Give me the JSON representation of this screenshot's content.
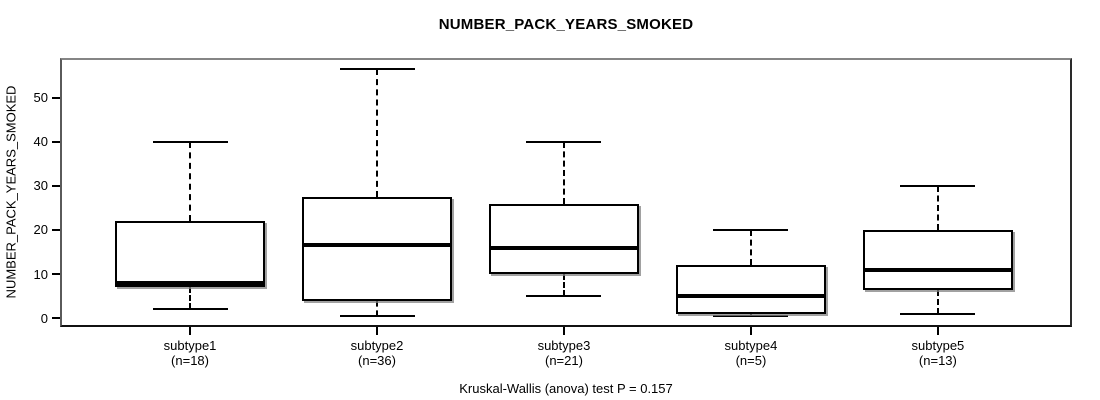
{
  "title": "NUMBER_PACK_YEARS_SMOKED",
  "caption": "Kruskal-Wallis (anova) test P = 0.157",
  "colors": {
    "background": "#ffffff",
    "line": "#000000",
    "box_fill": "#ffffff",
    "frame_shadow": "#808080"
  },
  "chart_data": {
    "type": "boxplot",
    "title": "NUMBER_PACK_YEARS_SMOKED",
    "ylabel": "NUMBER_PACK_YEARS_SMOKED",
    "xlabel": "",
    "ylim": [
      -2,
      59
    ],
    "yticks": [
      0,
      10,
      20,
      30,
      40,
      50
    ],
    "grid": false,
    "legend": false,
    "annotation": "Kruskal-Wallis (anova) test P = 0.157",
    "categories": [
      "subtype1",
      "subtype2",
      "subtype3",
      "subtype4",
      "subtype5"
    ],
    "series": [
      {
        "name": "subtype1",
        "label": "subtype1",
        "n_label": "(n=18)",
        "n": 18,
        "min": 2,
        "q1": 7,
        "median": 8,
        "q3": 22,
        "max": 40
      },
      {
        "name": "subtype2",
        "label": "subtype2",
        "n_label": "(n=36)",
        "n": 36,
        "min": 0.5,
        "q1": 4,
        "median": 16.5,
        "q3": 27.5,
        "max": 56.5
      },
      {
        "name": "subtype3",
        "label": "subtype3",
        "n_label": "(n=21)",
        "n": 21,
        "min": 5,
        "q1": 10,
        "median": 16,
        "q3": 26,
        "max": 40
      },
      {
        "name": "subtype4",
        "label": "subtype4",
        "n_label": "(n=5)",
        "n": 5,
        "min": 0.5,
        "q1": 1,
        "median": 5,
        "q3": 12,
        "max": 20
      },
      {
        "name": "subtype5",
        "label": "subtype5",
        "n_label": "(n=13)",
        "n": 13,
        "min": 1,
        "q1": 6.5,
        "median": 11,
        "q3": 20,
        "max": 30
      }
    ]
  }
}
